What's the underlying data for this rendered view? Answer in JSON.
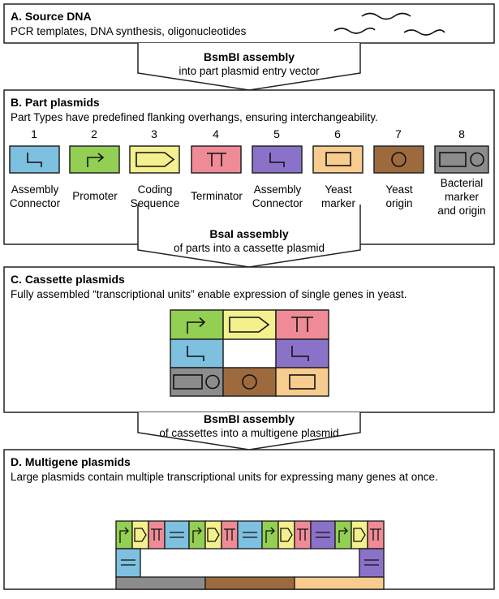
{
  "colors": {
    "connector_blue": "#7ec0e0",
    "promoter_green": "#93cf52",
    "cds_yellow": "#f3f08d",
    "terminator_pink": "#ee8b97",
    "connector_purple": "#8b72c9",
    "yeast_marker_peach": "#f8cc8e",
    "yeast_origin_brown": "#9d6a3e",
    "bacterial_gray": "#8c8c8c"
  },
  "sectionA": {
    "title": "A. Source DNA",
    "subtitle": "PCR templates, DNA synthesis, oligonucleotides"
  },
  "arrow1": {
    "title": "BsmBI assembly",
    "subtitle": "into part plasmid entry vector"
  },
  "sectionB": {
    "title": "B. Part plasmids",
    "subtitle": "Part Types have predefined flanking overhangs, ensuring interchangeability.",
    "parts": [
      {
        "number": "1",
        "label": "Assembly\nConnector",
        "icon": "connector-icon"
      },
      {
        "number": "2",
        "label": "Promoter",
        "icon": "promoter-arrow-icon"
      },
      {
        "number": "3",
        "label": "Coding\nSequence",
        "icon": "cds-pentagon-icon"
      },
      {
        "number": "4",
        "label": "Terminator",
        "icon": "terminator-t-icon"
      },
      {
        "number": "5",
        "label": "Assembly\nConnector",
        "icon": "connector-icon"
      },
      {
        "number": "6",
        "label": "Yeast\nmarker",
        "icon": "marker-rectangle-icon"
      },
      {
        "number": "7",
        "label": "Yeast\norigin",
        "icon": "origin-circle-icon"
      },
      {
        "number": "8",
        "label": "Bacterial\nmarker\nand origin",
        "icon": "bacterial-marker-origin-icon"
      }
    ]
  },
  "arrow2": {
    "title": "BsaI assembly",
    "subtitle": "of parts into a cassette plasmid"
  },
  "sectionC": {
    "title": "C. Cassette plasmids",
    "subtitle": "Fully assembled “transcriptional units” enable expression of single genes in yeast."
  },
  "arrow3": {
    "title": "BsmBI assembly",
    "subtitle": "of cassettes into a multigene plasmid"
  },
  "sectionD": {
    "title": "D. Multigene plasmids",
    "subtitle": "Large plasmids contain multiple transcriptional units for expressing many genes at once."
  }
}
